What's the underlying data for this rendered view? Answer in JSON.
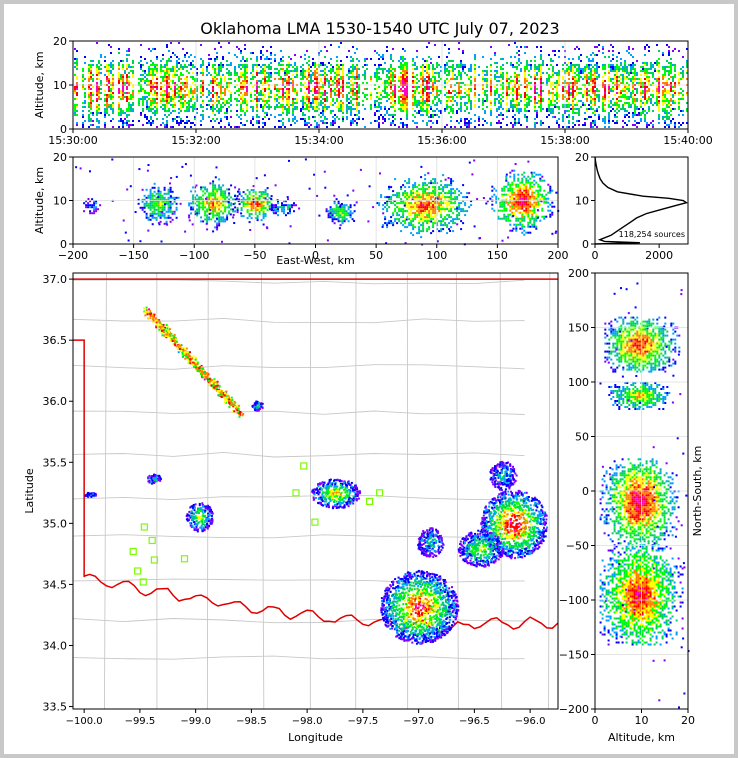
{
  "title": "Oklahoma LMA 1530-1540 UTC July 07, 2023",
  "colors": {
    "frame": "#c8c8c8",
    "state_border": "#e00000",
    "county_lines": "#c8c8c8",
    "station_marker": "#7cfc00",
    "histogram_line": "#000000",
    "density_scale": [
      "#7f00ff",
      "#0000ff",
      "#00a0ff",
      "#00d060",
      "#00ff00",
      "#ffff00",
      "#ff8000",
      "#ff0000",
      "#ff00c0"
    ]
  },
  "chart_data": [
    {
      "panel": "time-altitude",
      "type": "heatmap",
      "xlabel": "",
      "ylabel": "Altitude, km",
      "xticks": [
        "15:30:00",
        "15:32:00",
        "15:34:00",
        "15:36:00",
        "15:38:00",
        "15:40:00"
      ],
      "xlim_minutes": [
        0,
        10
      ],
      "yticks": [
        "0",
        "10",
        "20"
      ],
      "ylim": [
        0,
        20
      ],
      "grid": true,
      "density_core_altitude_km": [
        4,
        15
      ]
    },
    {
      "panel": "east-west-altitude",
      "type": "heatmap",
      "xlabel": "East-West, km",
      "ylabel": "Altitude, km",
      "xticks": [
        "−200",
        "−150",
        "−100",
        "−50",
        "0",
        "50",
        "100",
        "150",
        "200"
      ],
      "xlim": [
        -200,
        200
      ],
      "yticks": [
        "0",
        "10",
        "20"
      ],
      "ylim": [
        0,
        20
      ],
      "grid": true,
      "clusters": [
        {
          "x_range": [
            -195,
            -175
          ],
          "alt_range": [
            7,
            11
          ],
          "intensity": 0.25
        },
        {
          "x_range": [
            -150,
            -110
          ],
          "alt_range": [
            4,
            15
          ],
          "intensity": 0.6
        },
        {
          "x_range": [
            -110,
            -60
          ],
          "alt_range": [
            3,
            16
          ],
          "intensity": 0.75
        },
        {
          "x_range": [
            -70,
            -30
          ],
          "alt_range": [
            5,
            14
          ],
          "intensity": 0.85
        },
        {
          "x_range": [
            -40,
            -15
          ],
          "alt_range": [
            6,
            11
          ],
          "intensity": 0.4
        },
        {
          "x_range": [
            5,
            35
          ],
          "alt_range": [
            4,
            11
          ],
          "intensity": 0.55
        },
        {
          "x_range": [
            45,
            135
          ],
          "alt_range": [
            1,
            17
          ],
          "intensity": 0.85
        },
        {
          "x_range": [
            140,
            200
          ],
          "alt_range": [
            2,
            18
          ],
          "intensity": 0.95
        }
      ]
    },
    {
      "panel": "altitude-histogram",
      "type": "line",
      "xlabel": "",
      "ylabel": "",
      "xticks": [
        "0",
        "2000"
      ],
      "xlim": [
        0,
        2900
      ],
      "yticks": [
        "0",
        "10",
        "20"
      ],
      "ylim": [
        0,
        20
      ],
      "annotation": "118,254 sources",
      "profile": [
        {
          "alt": 0.0,
          "count": 0
        },
        {
          "alt": 0.3,
          "count": 1400
        },
        {
          "alt": 0.6,
          "count": 300
        },
        {
          "alt": 1.0,
          "count": 150
        },
        {
          "alt": 2.0,
          "count": 500
        },
        {
          "alt": 3.0,
          "count": 700
        },
        {
          "alt": 4.0,
          "count": 900
        },
        {
          "alt": 5.0,
          "count": 1100
        },
        {
          "alt": 6.0,
          "count": 1300
        },
        {
          "alt": 7.0,
          "count": 1600
        },
        {
          "alt": 8.0,
          "count": 2100
        },
        {
          "alt": 9.0,
          "count": 2600
        },
        {
          "alt": 9.5,
          "count": 2850
        },
        {
          "alt": 10.0,
          "count": 2750
        },
        {
          "alt": 10.5,
          "count": 2300
        },
        {
          "alt": 11.0,
          "count": 1500
        },
        {
          "alt": 12.0,
          "count": 700
        },
        {
          "alt": 13.0,
          "count": 400
        },
        {
          "alt": 14.0,
          "count": 250
        },
        {
          "alt": 15.0,
          "count": 160
        },
        {
          "alt": 16.0,
          "count": 110
        },
        {
          "alt": 17.0,
          "count": 70
        },
        {
          "alt": 18.0,
          "count": 40
        },
        {
          "alt": 19.0,
          "count": 15
        },
        {
          "alt": 20.0,
          "count": 0
        }
      ]
    },
    {
      "panel": "plan-view",
      "type": "heatmap",
      "xlabel": "Longitude",
      "ylabel": "Latitude",
      "xticks": [
        "−100.0",
        "−99.5",
        "−99.0",
        "−98.5",
        "−98.0",
        "−97.5",
        "−97.0",
        "−96.5",
        "−96.0"
      ],
      "xlim": [
        -100.1,
        -95.75
      ],
      "yticks": [
        "33.5",
        "34.0",
        "34.5",
        "35.0",
        "35.5",
        "36.0",
        "36.5",
        "37.0"
      ],
      "ylim": [
        33.48,
        37.05
      ],
      "grid": false,
      "storm_line_nw": {
        "from": {
          "lon": -99.45,
          "lat": 36.75
        },
        "to": {
          "lon": -98.6,
          "lat": 35.9
        },
        "intensity": 0.8
      },
      "cells": [
        {
          "lon": -98.45,
          "lat": 35.97,
          "rlon": 0.05,
          "rlat": 0.04,
          "intensity": 0.4
        },
        {
          "lon": -99.95,
          "lat": 35.24,
          "rlon": 0.05,
          "rlat": 0.02,
          "intensity": 0.3
        },
        {
          "lon": -99.38,
          "lat": 35.37,
          "rlon": 0.06,
          "rlat": 0.04,
          "intensity": 0.4
        },
        {
          "lon": -98.97,
          "lat": 35.06,
          "rlon": 0.12,
          "rlat": 0.12,
          "intensity": 0.6
        },
        {
          "lon": -97.75,
          "lat": 35.25,
          "rlon": 0.22,
          "rlat": 0.12,
          "intensity": 0.7
        },
        {
          "lon": -97.0,
          "lat": 34.32,
          "rlon": 0.35,
          "rlat": 0.3,
          "intensity": 0.9
        },
        {
          "lon": -96.9,
          "lat": 34.85,
          "rlon": 0.12,
          "rlat": 0.12,
          "intensity": 0.4
        },
        {
          "lon": -96.15,
          "lat": 35.0,
          "rlon": 0.3,
          "rlat": 0.28,
          "intensity": 0.95
        },
        {
          "lon": -96.45,
          "lat": 34.8,
          "rlon": 0.2,
          "rlat": 0.15,
          "intensity": 0.6
        },
        {
          "lon": -96.25,
          "lat": 35.4,
          "rlon": 0.12,
          "rlat": 0.12,
          "intensity": 0.4
        }
      ],
      "stations": [
        {
          "lon": -98.03,
          "lat": 35.47
        },
        {
          "lon": -98.1,
          "lat": 35.25
        },
        {
          "lon": -97.93,
          "lat": 35.01
        },
        {
          "lon": -97.44,
          "lat": 35.18
        },
        {
          "lon": -97.35,
          "lat": 35.25
        },
        {
          "lon": -99.46,
          "lat": 34.97
        },
        {
          "lon": -99.39,
          "lat": 34.86
        },
        {
          "lon": -99.56,
          "lat": 34.77
        },
        {
          "lon": -99.37,
          "lat": 34.7
        },
        {
          "lon": -99.1,
          "lat": 34.71
        },
        {
          "lon": -99.52,
          "lat": 34.61
        },
        {
          "lon": -99.47,
          "lat": 34.52
        }
      ]
    },
    {
      "panel": "altitude-north-south",
      "type": "heatmap",
      "xlabel": "Altitude, km",
      "ylabel": "North-South, km",
      "xticks": [
        "0",
        "10",
        "20"
      ],
      "xlim": [
        0,
        20
      ],
      "yticks": [
        "−200",
        "−150",
        "−100",
        "−50",
        "0",
        "50",
        "100",
        "150",
        "200"
      ],
      "ylim": [
        -200,
        200
      ],
      "grid": true,
      "clusters": [
        {
          "y_range": [
            110,
            160
          ],
          "alt_range": [
            2,
            18
          ],
          "intensity": 0.85
        },
        {
          "y_range": [
            75,
            100
          ],
          "alt_range": [
            2,
            16
          ],
          "intensity": 0.7
        },
        {
          "y_range": [
            -50,
            30
          ],
          "alt_range": [
            1,
            18
          ],
          "intensity": 0.95
        },
        {
          "y_range": [
            -140,
            -50
          ],
          "alt_range": [
            1,
            19
          ],
          "intensity": 0.9
        }
      ]
    }
  ]
}
